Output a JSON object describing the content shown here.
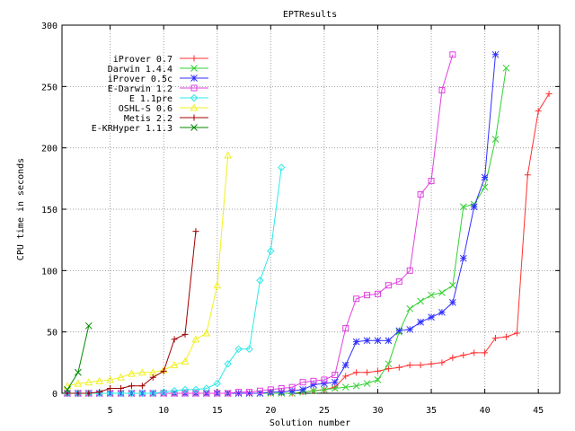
{
  "chart_data": {
    "type": "line",
    "title": "EPTResults",
    "xlabel": "Solution number",
    "ylabel": "CPU time in seconds",
    "xlim": [
      0.5,
      47
    ],
    "ylim": [
      0,
      300
    ],
    "xticks": [
      5,
      10,
      15,
      20,
      25,
      30,
      35,
      40,
      45
    ],
    "yticks": [
      0,
      50,
      100,
      150,
      200,
      250,
      300
    ],
    "grid": true,
    "legend_position": "top-left",
    "series": [
      {
        "name": "iProver 0.7",
        "color": "#ff3030",
        "marker": "plus",
        "x": [
          1,
          2,
          3,
          4,
          5,
          6,
          7,
          8,
          9,
          10,
          11,
          12,
          13,
          14,
          15,
          16,
          17,
          18,
          19,
          20,
          21,
          22,
          23,
          24,
          25,
          26,
          27,
          28,
          29,
          30,
          31,
          32,
          33,
          34,
          35,
          36,
          37,
          38,
          39,
          40,
          41,
          42,
          43,
          44,
          45,
          46
        ],
        "y": [
          0,
          0,
          0,
          0,
          0,
          0,
          0,
          0,
          0,
          0,
          0,
          0,
          0,
          0,
          0,
          0,
          0,
          0,
          0,
          0,
          0,
          0,
          1,
          2,
          3,
          5,
          14,
          17,
          17,
          18,
          20,
          21,
          23,
          23,
          24,
          25,
          29,
          31,
          33,
          33,
          45,
          46,
          49,
          178,
          230,
          244
        ]
      },
      {
        "name": "Darwin 1.4.4",
        "color": "#30d030",
        "marker": "cross",
        "x": [
          1,
          2,
          3,
          4,
          5,
          6,
          7,
          8,
          9,
          10,
          11,
          12,
          13,
          14,
          15,
          16,
          17,
          18,
          19,
          20,
          21,
          22,
          23,
          24,
          25,
          26,
          27,
          28,
          29,
          30,
          31,
          32,
          33,
          34,
          35,
          36,
          37,
          38,
          39,
          40,
          41,
          42
        ],
        "y": [
          0,
          0,
          0,
          0,
          0,
          0,
          0,
          0,
          0,
          0,
          0,
          0,
          0,
          0,
          0,
          0,
          0,
          0,
          0,
          0,
          0,
          0,
          1,
          2,
          3,
          4,
          5,
          6,
          8,
          11,
          24,
          50,
          69,
          75,
          80,
          82,
          88,
          152,
          154,
          168,
          207,
          265
        ]
      },
      {
        "name": "iProver 0.5c",
        "color": "#3030ff",
        "marker": "star",
        "x": [
          1,
          2,
          3,
          4,
          5,
          6,
          7,
          8,
          9,
          10,
          11,
          12,
          13,
          14,
          15,
          16,
          17,
          18,
          19,
          20,
          21,
          22,
          23,
          24,
          25,
          26,
          27,
          28,
          29,
          30,
          31,
          32,
          33,
          34,
          35,
          36,
          37,
          38,
          39,
          40,
          41
        ],
        "y": [
          0,
          0,
          0,
          0,
          0,
          0,
          0,
          0,
          0,
          0,
          0,
          0,
          0,
          0,
          0,
          0,
          0,
          0,
          0,
          1,
          1,
          2,
          3,
          7,
          8,
          9,
          23,
          42,
          43,
          43,
          43,
          51,
          52,
          58,
          62,
          66,
          74,
          110,
          152,
          176,
          276
        ]
      },
      {
        "name": "E-Darwin 1.2",
        "color": "#e040e0",
        "marker": "square",
        "x": [
          1,
          2,
          3,
          4,
          5,
          6,
          7,
          8,
          9,
          10,
          11,
          12,
          13,
          14,
          15,
          16,
          17,
          18,
          19,
          20,
          21,
          22,
          23,
          24,
          25,
          26,
          27,
          28,
          29,
          30,
          31,
          32,
          33,
          34,
          35,
          36,
          37
        ],
        "y": [
          0,
          0,
          0,
          0,
          0,
          0,
          0,
          0,
          0,
          0,
          0,
          0,
          0,
          0,
          0,
          0,
          1,
          1,
          2,
          3,
          4,
          5,
          9,
          10,
          11,
          15,
          53,
          77,
          80,
          81,
          88,
          91,
          100,
          162,
          173,
          247,
          276
        ]
      },
      {
        "name": "E 1.1pre",
        "color": "#30e8e8",
        "marker": "diamond",
        "x": [
          1,
          2,
          3,
          4,
          5,
          6,
          7,
          8,
          9,
          10,
          11,
          12,
          13,
          14,
          15,
          16,
          17,
          18,
          19,
          20,
          21
        ],
        "y": [
          0,
          0,
          0,
          0,
          0,
          0,
          0,
          0,
          0,
          1,
          2,
          3,
          3,
          4,
          8,
          24,
          36,
          36,
          92,
          116,
          184
        ]
      },
      {
        "name": "OSHL-S 0.6",
        "color": "#f0f020",
        "marker": "triangle",
        "x": [
          1,
          2,
          3,
          4,
          5,
          6,
          7,
          8,
          9,
          10,
          11,
          12,
          13,
          14,
          15,
          16
        ],
        "y": [
          6,
          8,
          9,
          10,
          11,
          13,
          16,
          17,
          17,
          19,
          23,
          26,
          44,
          49,
          88,
          194
        ]
      },
      {
        "name": "Metis 2.2",
        "color": "#a00000",
        "marker": "plus",
        "x": [
          1,
          2,
          3,
          4,
          5,
          6,
          7,
          8,
          9,
          10,
          11,
          12,
          13
        ],
        "y": [
          0,
          0,
          0,
          1,
          4,
          4,
          6,
          6,
          13,
          18,
          44,
          48,
          132
        ]
      },
      {
        "name": "E-KRHyper 1.1.3",
        "color": "#008800",
        "marker": "cross",
        "x": [
          1,
          2,
          3
        ],
        "y": [
          3,
          17,
          55
        ]
      }
    ]
  }
}
